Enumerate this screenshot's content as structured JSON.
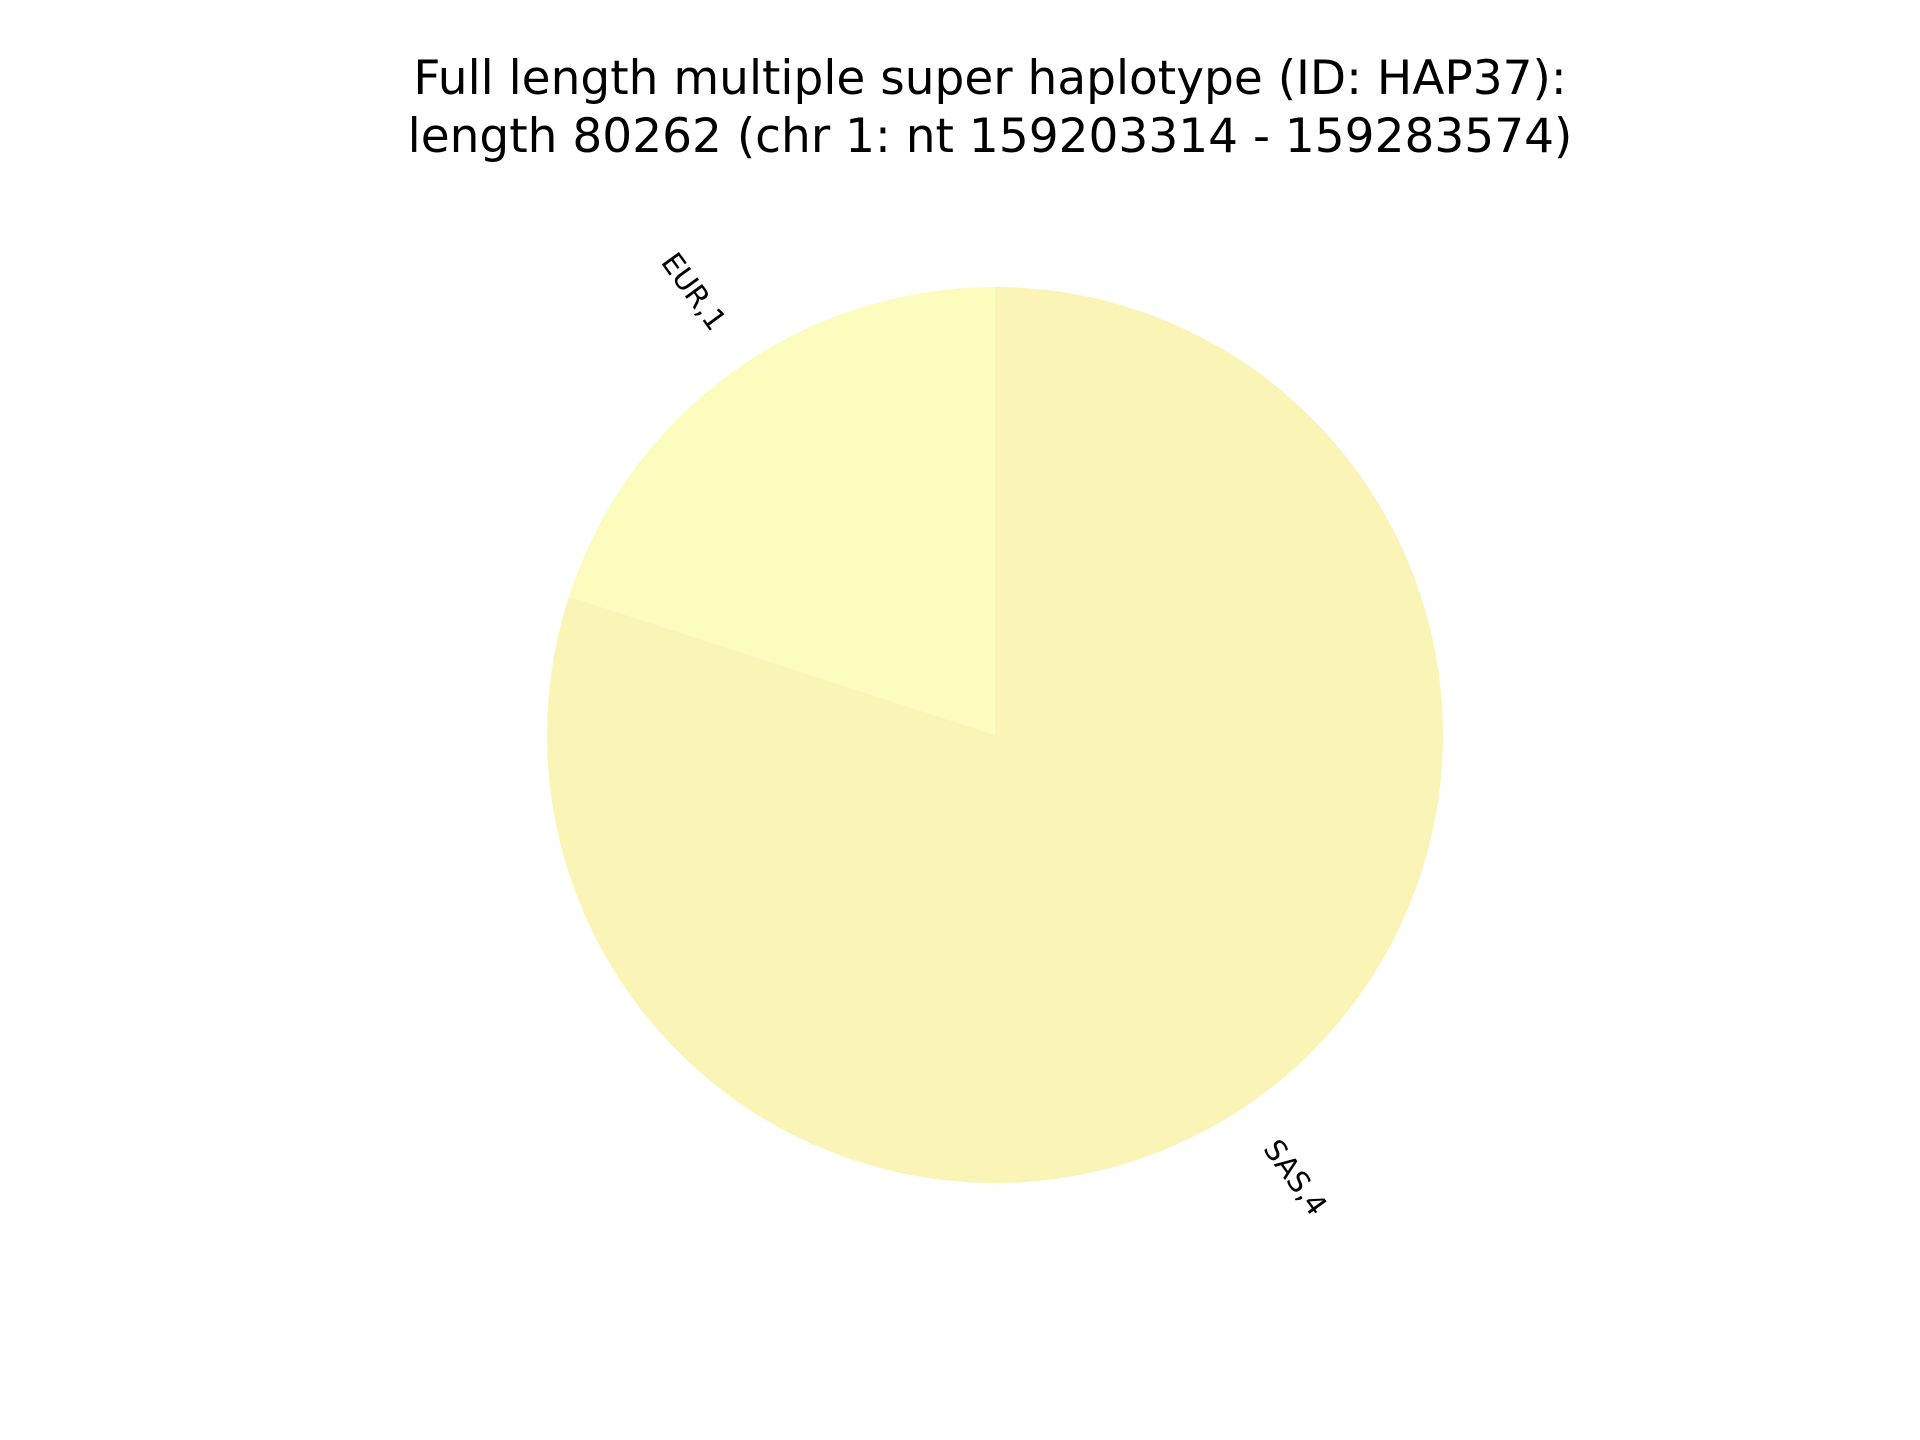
{
  "chart_data": {
    "type": "pie",
    "title": "Full length multiple super haplotype (ID: HAP37):",
    "subtitle": "length 80262 (chr 1: nt 159203314 - 159283574)",
    "start_angle_deg": 90,
    "direction": "counterclockwise",
    "labels_rotated": true,
    "slices": [
      {
        "label": "EUR,1",
        "category": "EUR",
        "value": 1,
        "color": "#fdfcbf"
      },
      {
        "label": "SAS,4",
        "category": "SAS",
        "value": 4,
        "color": "#fbf4b7"
      }
    ]
  }
}
